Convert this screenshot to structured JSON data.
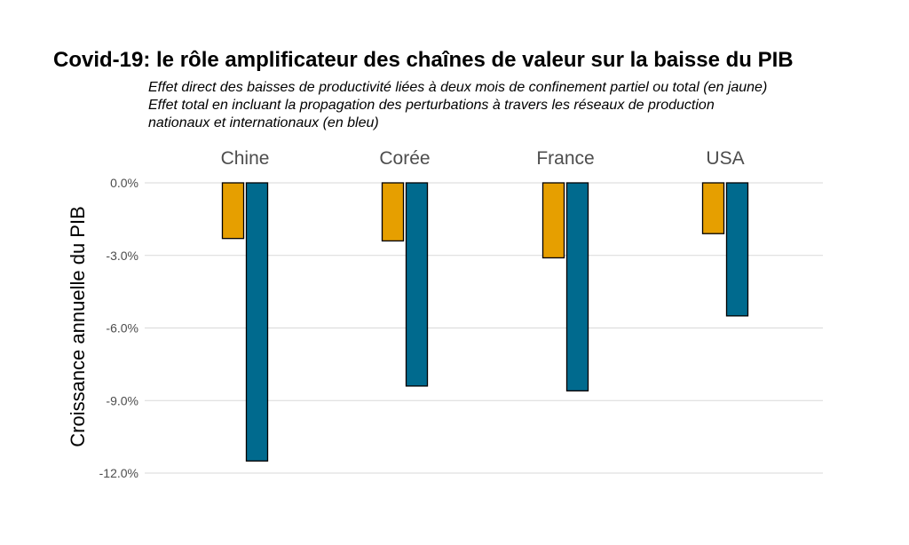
{
  "chart_data": {
    "type": "bar",
    "title": "Covid-19: le rôle amplificateur des chaînes de valeur sur la baisse du PIB",
    "subtitle": [
      "Effet direct des baisses de productivité liées à deux mois de confinement partiel ou total (en jaune)",
      "Effet total en incluant la propagation des perturbations à travers les réseaux de production",
      "nationaux et internationaux (en bleu)"
    ],
    "ylabel": "Croissance annuelle du PIB",
    "categories": [
      "Chine",
      "Corée",
      "France",
      "USA"
    ],
    "series": [
      {
        "color": "#E69F00",
        "values": [
          -2.3,
          -2.4,
          -3.1,
          -2.1
        ]
      },
      {
        "color": "#006A8E",
        "values": [
          -11.5,
          -8.4,
          -8.6,
          -5.5
        ]
      }
    ],
    "ylim": [
      -12.0,
      0.0
    ],
    "yticks": [
      0.0,
      -3.0,
      -6.0,
      -9.0,
      -12.0
    ],
    "ytick_labels": [
      "0.0%",
      "-3.0%",
      "-6.0%",
      "-9.0%",
      "-12.0%"
    ],
    "grid": true,
    "legend": "none"
  }
}
